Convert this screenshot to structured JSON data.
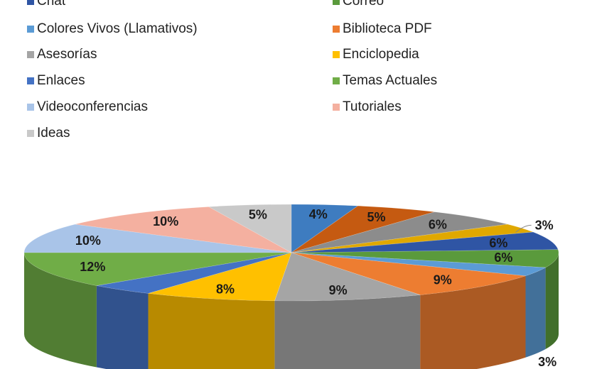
{
  "chart_data": {
    "type": "pie",
    "style": "3d",
    "legend": [
      {
        "name": "Chat",
        "color": "#2F55A4"
      },
      {
        "name": "Correo",
        "color": "#5A9A3C"
      },
      {
        "name": "Colores Vivos (Llamativos)",
        "color": "#5B9BD5"
      },
      {
        "name": "Biblioteca PDF",
        "color": "#ED7D31"
      },
      {
        "name": "Asesorías",
        "color": "#A5A5A5"
      },
      {
        "name": "Enciclopedia",
        "color": "#FFC000"
      },
      {
        "name": "Enlaces",
        "color": "#4472C4"
      },
      {
        "name": "Temas Actuales",
        "color": "#70AD47"
      },
      {
        "name": "Videoconferencias",
        "color": "#A9C4E8"
      },
      {
        "name": "Tutoriales",
        "color": "#F4B0A0"
      },
      {
        "name": "Ideas",
        "color": "#C9C9C9"
      }
    ],
    "legend_placement": "top",
    "slices": [
      {
        "value": 4,
        "label": "4%",
        "color": "#3E7CC0"
      },
      {
        "value": 5,
        "label": "5%",
        "color": "#C55A11"
      },
      {
        "value": 6,
        "label": "6%",
        "color": "#8C8C8C"
      },
      {
        "value": 3,
        "label": "3%",
        "color": "#E0A800"
      },
      {
        "value": 6,
        "label": "6%",
        "color": "#2F55A4"
      },
      {
        "value": 6,
        "label": "6%",
        "color": "#5A9A3C"
      },
      {
        "value": 3,
        "label": "3%",
        "color": "#5B9BD5"
      },
      {
        "value": 9,
        "label": "9%",
        "color": "#ED7D31"
      },
      {
        "value": 9,
        "label": "9%",
        "color": "#A5A5A5"
      },
      {
        "value": 8,
        "label": "8%",
        "color": "#FFC000"
      },
      {
        "value": 4,
        "label": null,
        "color": "#4472C4"
      },
      {
        "value": 12,
        "label": "12%",
        "color": "#70AD47"
      },
      {
        "value": 10,
        "label": "10%",
        "color": "#A9C4E8"
      },
      {
        "value": 10,
        "label": "10%",
        "color": "#F4B0A0"
      },
      {
        "value": 5,
        "label": "5%",
        "color": "#C9C9C9"
      }
    ]
  }
}
